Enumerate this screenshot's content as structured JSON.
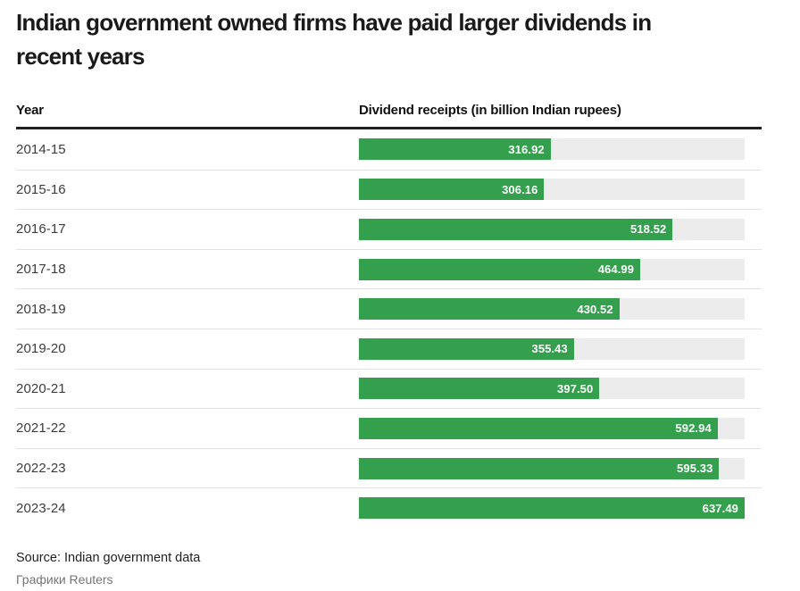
{
  "title": {
    "line1": "Indian government owned firms have paid larger dividends in",
    "line2": "recent years"
  },
  "table": {
    "col1_header": "Year",
    "col2_header": "Dividend receipts (in billion Indian rupees)"
  },
  "footer": {
    "source": "Source: Indian government data",
    "credit": "Графики Reuters"
  },
  "colors": {
    "bar_fill": "#34a04d",
    "bar_track": "#ececec",
    "header_rule": "#212121",
    "row_separator": "#e2e2e2",
    "title_text": "#1a1a1a",
    "value_label_text": "#ffffff"
  },
  "chart_data": {
    "type": "bar",
    "orientation": "horizontal",
    "title": "Indian government owned firms have paid larger dividends in recent years",
    "xlabel": "Dividend receipts (in billion Indian rupees)",
    "ylabel": "Year",
    "categories": [
      "2014-15",
      "2015-16",
      "2016-17",
      "2017-18",
      "2018-19",
      "2019-20",
      "2020-21",
      "2021-22",
      "2022-23",
      "2023-24"
    ],
    "values": [
      316.92,
      306.16,
      518.52,
      464.99,
      430.52,
      355.43,
      397.5,
      592.94,
      595.33,
      637.49
    ],
    "xlim": [
      0,
      637.49
    ],
    "value_labels": true,
    "value_label_decimals": 2,
    "grid": false,
    "legend": false
  }
}
